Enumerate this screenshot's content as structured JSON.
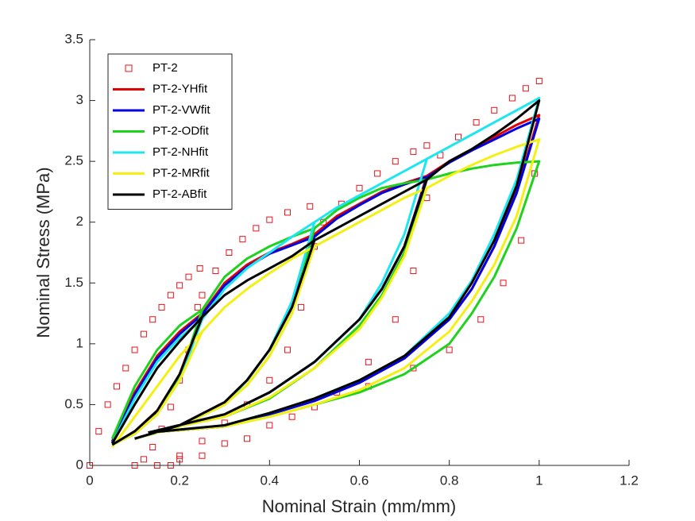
{
  "chart_data": {
    "type": "line",
    "xlabel": "Nominal Strain (mm/mm)",
    "ylabel": "Nominal Stress (MPa)",
    "xlim": [
      0,
      1.2
    ],
    "ylim": [
      0,
      3.5
    ],
    "xticks": [
      0,
      0.2,
      0.4,
      0.6,
      0.8,
      1,
      1.2
    ],
    "yticks": [
      0,
      0.5,
      1,
      1.5,
      2,
      2.5,
      3,
      3.5
    ],
    "legend": "upper-left",
    "series": [
      {
        "name": "PT-2",
        "color": "#e8141c",
        "mode": "markers",
        "x": [
          0,
          0.02,
          0.04,
          0.06,
          0.08,
          0.1,
          0.12,
          0.14,
          0.16,
          0.18,
          0.2,
          0.22,
          0.245,
          0.24,
          0.22,
          0.2,
          0.18,
          0.16,
          0.14,
          0.12,
          0.1,
          0.25,
          0.28,
          0.31,
          0.34,
          0.37,
          0.4,
          0.44,
          0.49,
          0.5,
          0.47,
          0.44,
          0.4,
          0.35,
          0.3,
          0.25,
          0.2,
          0.15,
          0.52,
          0.56,
          0.6,
          0.64,
          0.68,
          0.72,
          0.75,
          0.75,
          0.72,
          0.68,
          0.62,
          0.55,
          0.45,
          0.35,
          0.25,
          0.18,
          0.78,
          0.82,
          0.86,
          0.9,
          0.94,
          0.97,
          1,
          0.99,
          0.96,
          0.92,
          0.87,
          0.8,
          0.72,
          0.62,
          0.5,
          0.4,
          0.3,
          0.2
        ],
        "values": [
          0,
          0.28,
          0.5,
          0.65,
          0.8,
          0.95,
          1.08,
          1.2,
          1.3,
          1.4,
          1.48,
          1.55,
          1.62,
          1.3,
          0.95,
          0.7,
          0.48,
          0.3,
          0.15,
          0.05,
          0,
          1.4,
          1.6,
          1.75,
          1.86,
          1.95,
          2.02,
          2.08,
          2.13,
          1.8,
          1.3,
          0.95,
          0.7,
          0.5,
          0.35,
          0.2,
          0.08,
          0,
          2,
          2.15,
          2.28,
          2.4,
          2.5,
          2.58,
          2.63,
          2.2,
          1.6,
          1.2,
          0.85,
          0.6,
          0.4,
          0.22,
          0.08,
          0,
          2.55,
          2.7,
          2.82,
          2.92,
          3.02,
          3.1,
          3.16,
          2.4,
          1.85,
          1.5,
          1.2,
          0.95,
          0.8,
          0.65,
          0.48,
          0.33,
          0.18,
          0.05
        ]
      },
      {
        "name": "PT-2-YHfit",
        "color": "#e00000",
        "mode": "line",
        "x": [
          0.05,
          0.1,
          0.15,
          0.2,
          0.25,
          0.2,
          0.15,
          0.1,
          0.05,
          null,
          0.25,
          0.3,
          0.35,
          0.4,
          0.45,
          0.5,
          0.45,
          0.4,
          0.35,
          0.3,
          0.2,
          0.1,
          null,
          0.5,
          0.55,
          0.6,
          0.65,
          0.7,
          0.75,
          0.7,
          0.65,
          0.6,
          0.5,
          0.4,
          0.3,
          0.13,
          null,
          0.75,
          0.8,
          0.85,
          0.9,
          0.95,
          1,
          0.95,
          0.9,
          0.85,
          0.8,
          0.7,
          0.6,
          0.5,
          0.4,
          0.3,
          0.13
        ],
        "values": [
          0.2,
          0.6,
          0.9,
          1.1,
          1.25,
          0.75,
          0.45,
          0.28,
          0.17,
          null,
          1.25,
          1.5,
          1.65,
          1.75,
          1.82,
          1.9,
          1.3,
          0.95,
          0.7,
          0.52,
          0.33,
          0.22,
          null,
          1.9,
          2.05,
          2.15,
          2.25,
          2.32,
          2.38,
          1.8,
          1.45,
          1.2,
          0.85,
          0.6,
          0.42,
          0.27,
          null,
          2.38,
          2.5,
          2.6,
          2.7,
          2.8,
          2.88,
          2.25,
          1.8,
          1.45,
          1.2,
          0.88,
          0.68,
          0.53,
          0.42,
          0.32,
          0.27
        ]
      },
      {
        "name": "PT-2-VWfit",
        "color": "#0000e0",
        "mode": "line",
        "x": [
          0.05,
          0.1,
          0.15,
          0.2,
          0.25,
          0.2,
          0.15,
          0.1,
          0.05,
          null,
          0.25,
          0.3,
          0.35,
          0.4,
          0.45,
          0.5,
          0.45,
          0.4,
          0.35,
          0.3,
          0.2,
          0.1,
          null,
          0.5,
          0.55,
          0.6,
          0.65,
          0.7,
          0.75,
          0.7,
          0.65,
          0.6,
          0.5,
          0.4,
          0.3,
          0.13,
          null,
          0.75,
          0.8,
          0.85,
          0.9,
          0.95,
          1,
          0.95,
          0.9,
          0.85,
          0.8,
          0.7,
          0.6,
          0.5,
          0.4,
          0.3,
          0.13
        ],
        "values": [
          0.19,
          0.58,
          0.88,
          1.08,
          1.24,
          0.74,
          0.44,
          0.27,
          0.17,
          null,
          1.24,
          1.48,
          1.63,
          1.74,
          1.81,
          1.88,
          1.3,
          0.95,
          0.7,
          0.52,
          0.33,
          0.22,
          null,
          1.88,
          2.03,
          2.14,
          2.24,
          2.31,
          2.37,
          1.8,
          1.45,
          1.2,
          0.85,
          0.6,
          0.42,
          0.27,
          null,
          2.37,
          2.49,
          2.59,
          2.68,
          2.77,
          2.85,
          2.24,
          1.8,
          1.45,
          1.2,
          0.88,
          0.68,
          0.53,
          0.42,
          0.32,
          0.27
        ]
      },
      {
        "name": "PT-2-ODfit",
        "color": "#1ed21e",
        "mode": "line",
        "x": [
          0.05,
          0.1,
          0.15,
          0.2,
          0.25,
          0.2,
          0.15,
          0.1,
          0.05,
          null,
          0.25,
          0.3,
          0.35,
          0.4,
          0.45,
          0.5,
          0.45,
          0.4,
          0.35,
          0.3,
          0.2,
          0.1,
          null,
          0.5,
          0.55,
          0.6,
          0.65,
          0.7,
          0.75,
          0.7,
          0.65,
          0.6,
          0.5,
          0.4,
          0.3,
          0.13,
          null,
          0.75,
          0.8,
          0.85,
          0.9,
          0.95,
          1,
          0.95,
          0.9,
          0.85,
          0.8,
          0.7,
          0.6,
          0.5,
          0.4,
          0.3,
          0.13
        ],
        "values": [
          0.22,
          0.65,
          0.95,
          1.15,
          1.28,
          0.72,
          0.42,
          0.26,
          0.17,
          null,
          1.28,
          1.55,
          1.7,
          1.8,
          1.88,
          1.95,
          1.25,
          0.9,
          0.66,
          0.5,
          0.32,
          0.22,
          null,
          1.95,
          2.1,
          2.2,
          2.28,
          2.32,
          2.35,
          1.75,
          1.4,
          1.15,
          0.8,
          0.55,
          0.4,
          0.27,
          null,
          2.35,
          2.4,
          2.44,
          2.47,
          2.49,
          2.5,
          1.95,
          1.55,
          1.25,
          1,
          0.75,
          0.6,
          0.5,
          0.4,
          0.32,
          0.27
        ]
      },
      {
        "name": "PT-2-NHfit",
        "color": "#1ee6f0",
        "mode": "line",
        "x": [
          0.05,
          0.1,
          0.15,
          0.2,
          0.25,
          0.2,
          0.15,
          0.1,
          0.05,
          null,
          0.25,
          0.3,
          0.35,
          0.4,
          0.45,
          0.5,
          0.45,
          0.4,
          0.35,
          0.3,
          0.2,
          0.1,
          null,
          0.5,
          0.55,
          0.6,
          0.65,
          0.7,
          0.75,
          0.7,
          0.65,
          0.6,
          0.5,
          0.4,
          0.3,
          0.13,
          null,
          0.75,
          0.8,
          0.85,
          0.9,
          0.95,
          1,
          0.95,
          0.9,
          0.85,
          0.8,
          0.7,
          0.6,
          0.5,
          0.4,
          0.3,
          0.13
        ],
        "values": [
          0.18,
          0.55,
          0.85,
          1.05,
          1.2,
          0.7,
          0.42,
          0.26,
          0.17,
          null,
          1.2,
          1.45,
          1.62,
          1.75,
          1.88,
          2,
          1.35,
          0.95,
          0.7,
          0.5,
          0.32,
          0.22,
          null,
          2,
          2.12,
          2.22,
          2.32,
          2.42,
          2.52,
          1.9,
          1.5,
          1.2,
          0.85,
          0.6,
          0.42,
          0.27,
          null,
          2.52,
          2.62,
          2.72,
          2.82,
          2.92,
          3.02,
          2.35,
          1.9,
          1.52,
          1.25,
          0.9,
          0.7,
          0.55,
          0.43,
          0.33,
          0.27
        ]
      },
      {
        "name": "PT-2-MRfit",
        "color": "#f5f014",
        "mode": "line",
        "x": [
          0.05,
          0.1,
          0.15,
          0.2,
          0.25,
          0.2,
          0.15,
          0.1,
          0.05,
          null,
          0.25,
          0.3,
          0.35,
          0.4,
          0.45,
          0.5,
          0.45,
          0.4,
          0.35,
          0.3,
          0.2,
          0.1,
          null,
          0.5,
          0.55,
          0.6,
          0.65,
          0.7,
          0.75,
          0.7,
          0.65,
          0.6,
          0.5,
          0.4,
          0.3,
          0.13,
          null,
          0.75,
          0.8,
          0.85,
          0.9,
          0.95,
          1,
          0.95,
          0.9,
          0.85,
          0.8,
          0.7,
          0.6,
          0.5,
          0.4,
          0.3,
          0.13
        ],
        "values": [
          0.15,
          0.4,
          0.65,
          0.9,
          1.1,
          0.7,
          0.42,
          0.26,
          0.17,
          null,
          1.1,
          1.3,
          1.45,
          1.58,
          1.7,
          1.8,
          1.25,
          0.9,
          0.66,
          0.5,
          0.32,
          0.22,
          null,
          1.8,
          1.9,
          2,
          2.1,
          2.2,
          2.28,
          1.72,
          1.38,
          1.12,
          0.8,
          0.56,
          0.4,
          0.27,
          null,
          2.28,
          2.38,
          2.47,
          2.55,
          2.62,
          2.68,
          2.05,
          1.65,
          1.35,
          1.1,
          0.8,
          0.62,
          0.5,
          0.4,
          0.32,
          0.27
        ]
      },
      {
        "name": "PT-2-ABfit",
        "color": "#000000",
        "mode": "line",
        "x": [
          0.05,
          0.1,
          0.15,
          0.2,
          0.25,
          0.2,
          0.15,
          0.1,
          0.05,
          null,
          0.25,
          0.3,
          0.35,
          0.4,
          0.45,
          0.5,
          0.45,
          0.4,
          0.35,
          0.3,
          0.2,
          0.1,
          null,
          0.5,
          0.55,
          0.6,
          0.65,
          0.7,
          0.75,
          0.7,
          0.65,
          0.6,
          0.5,
          0.4,
          0.3,
          0.13,
          null,
          0.75,
          0.8,
          0.85,
          0.9,
          0.95,
          1,
          0.95,
          0.9,
          0.85,
          0.8,
          0.7,
          0.6,
          0.5,
          0.4,
          0.3,
          0.13
        ],
        "values": [
          0.18,
          0.5,
          0.8,
          1.02,
          1.22,
          0.75,
          0.45,
          0.28,
          0.17,
          null,
          1.22,
          1.4,
          1.52,
          1.62,
          1.72,
          1.85,
          1.3,
          0.95,
          0.7,
          0.52,
          0.33,
          0.22,
          null,
          1.85,
          1.95,
          2.05,
          2.15,
          2.25,
          2.35,
          1.8,
          1.45,
          1.2,
          0.85,
          0.6,
          0.42,
          0.27,
          null,
          2.35,
          2.5,
          2.6,
          2.72,
          2.85,
          3,
          2.3,
          1.85,
          1.5,
          1.22,
          0.9,
          0.7,
          0.55,
          0.43,
          0.33,
          0.27
        ]
      }
    ]
  }
}
